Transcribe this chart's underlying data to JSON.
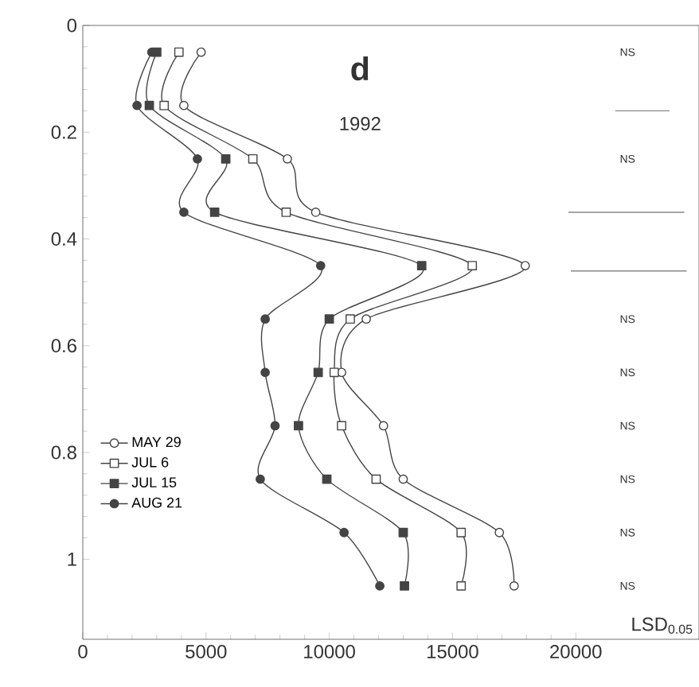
{
  "chart_data": {
    "type": "line",
    "title": "d",
    "subtitle": "1992",
    "xlim": [
      0,
      25000
    ],
    "ylim": [
      1.15,
      0
    ],
    "xticks": [
      0,
      5000,
      10000,
      15000,
      20000
    ],
    "yticks": [
      0,
      0.2,
      0.4,
      0.6,
      0.8,
      1
    ],
    "grid": false,
    "legend": "bottom left",
    "line_style": "solid",
    "series": [
      {
        "name": "MAY 29",
        "color": "#444444",
        "marker": "circle",
        "x": [
          4800,
          4100,
          8300,
          9450,
          17950,
          11500,
          10500,
          12200,
          13000,
          16900,
          17500
        ],
        "values": [
          0.05,
          0.15,
          0.25,
          0.35,
          0.45,
          0.55,
          0.65,
          0.75,
          0.85,
          0.95,
          1.05
        ]
      },
      {
        "name": "JUL 6",
        "color": "#444444",
        "marker": "square",
        "x": [
          3900,
          3300,
          6900,
          8250,
          15800,
          10850,
          10200,
          10500,
          11900,
          15350,
          15350
        ],
        "values": [
          0.05,
          0.15,
          0.25,
          0.35,
          0.45,
          0.55,
          0.65,
          0.75,
          0.85,
          0.95,
          1.05
        ]
      },
      {
        "name": "JUL 15",
        "color": "#444444",
        "marker": "square",
        "x": [
          3000,
          2700,
          5800,
          5350,
          13750,
          10000,
          9550,
          8750,
          9900,
          13000,
          13050
        ],
        "values": [
          0.05,
          0.15,
          0.25,
          0.35,
          0.45,
          0.55,
          0.65,
          0.75,
          0.85,
          0.95,
          1.05
        ]
      },
      {
        "name": "AUG 21",
        "color": "#444444",
        "marker": "circle",
        "x": [
          2800,
          2200,
          4650,
          4100,
          9650,
          7400,
          7400,
          7800,
          7200,
          10600,
          12050
        ],
        "values": [
          0.05,
          0.15,
          0.25,
          0.35,
          0.45,
          0.55,
          0.65,
          0.75,
          0.85,
          0.95,
          1.05
        ]
      },
      {
        "type": "step",
        "color": "#888888",
        "marker": "none",
        "x": [
          21600,
          23800,
          null,
          19700,
          24400,
          null,
          19800,
          24500
        ],
        "values": [
          0.16,
          0.16,
          null,
          0.35,
          0.35,
          null,
          0.46,
          0.46
        ]
      }
    ],
    "annotations": [
      "NS",
      "NS",
      "NS",
      "NS",
      "NS",
      "NS",
      "NS",
      "NS",
      "LSD$_{0.05}$"
    ]
  }
}
